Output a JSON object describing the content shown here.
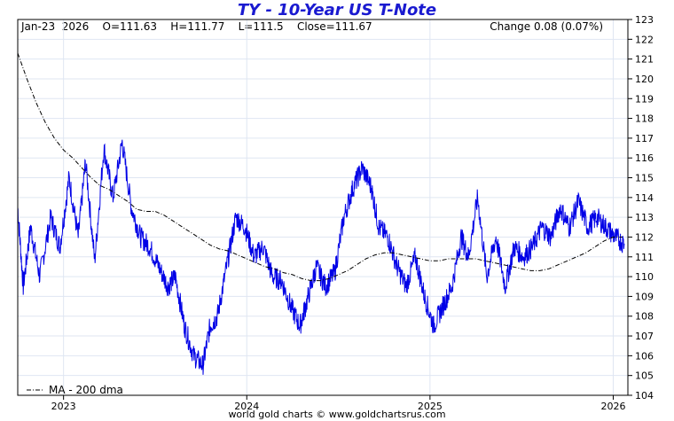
{
  "header": {
    "title": "TY  -  10-Year US T-Note",
    "stats": "Jan-23  2026    O=111.63    H=111.77    L=111.5    Close=111.67",
    "change": "Change 0.08 (0.07%)"
  },
  "footer": {
    "credit": "world gold charts © www.goldchartsrus.com"
  },
  "colors": {
    "price_line": "#0000e6",
    "ma_line": "#000000",
    "grid": "#dfe6f2",
    "frame": "#000000"
  },
  "chart_data": {
    "type": "line",
    "title": "TY  -  10-Year US T-Note",
    "ylim": [
      104,
      123
    ],
    "y_ticks": [
      104,
      105,
      106,
      107,
      108,
      109,
      110,
      111,
      112,
      113,
      114,
      115,
      116,
      117,
      118,
      119,
      120,
      121,
      122,
      123
    ],
    "x_ticks": [
      {
        "label": "2023",
        "x": 2023.0
      },
      {
        "label": "2024",
        "x": 2024.0
      },
      {
        "label": "2025",
        "x": 2025.0
      },
      {
        "label": "2026",
        "x": 2026.0
      }
    ],
    "xlim": [
      2022.75,
      2026.08
    ],
    "grid": true,
    "legend": {
      "position": "bottom-left",
      "entries": [
        "MA - 200 dma"
      ]
    },
    "series": [
      {
        "name": "TY",
        "style": "solid",
        "x": [
          2022.75,
          2022.78,
          2022.82,
          2022.87,
          2022.93,
          2022.98,
          2023.03,
          2023.08,
          2023.12,
          2023.17,
          2023.22,
          2023.27,
          2023.32,
          2023.37,
          2023.42,
          2023.47,
          2023.52,
          2023.57,
          2023.61,
          2023.66,
          2023.71,
          2023.76,
          2023.8,
          2023.84,
          2023.89,
          2023.94,
          2023.99,
          2024.04,
          2024.09,
          2024.14,
          2024.19,
          2024.24,
          2024.29,
          2024.33,
          2024.38,
          2024.43,
          2024.48,
          2024.53,
          2024.58,
          2024.63,
          2024.68,
          2024.72,
          2024.77,
          2024.82,
          2024.87,
          2024.92,
          2024.97,
          2025.02,
          2025.07,
          2025.12,
          2025.17,
          2025.21,
          2025.26,
          2025.31,
          2025.36,
          2025.41,
          2025.46,
          2025.51,
          2025.56,
          2025.61,
          2025.66,
          2025.71,
          2025.76,
          2025.81,
          2025.86,
          2025.91,
          2025.96,
          2026.01,
          2026.06
        ],
        "y": [
          113.5,
          109.5,
          112.5,
          110.0,
          113.0,
          111.5,
          115.0,
          112.0,
          115.8,
          110.8,
          116.5,
          114.0,
          116.8,
          113.5,
          112.0,
          111.5,
          110.5,
          109.5,
          110.0,
          107.5,
          106.0,
          105.5,
          107.5,
          108.0,
          110.5,
          113.0,
          112.5,
          111.0,
          111.5,
          110.0,
          109.8,
          108.5,
          107.5,
          108.8,
          110.5,
          109.5,
          110.2,
          113.0,
          114.5,
          115.5,
          114.5,
          112.5,
          112.0,
          110.5,
          109.5,
          111.0,
          109.0,
          107.5,
          108.5,
          109.5,
          112.0,
          111.0,
          114.0,
          110.0,
          112.0,
          109.5,
          111.5,
          111.0,
          111.5,
          112.5,
          112.0,
          113.5,
          112.5,
          113.8,
          112.5,
          113.0,
          112.5,
          112.0,
          111.67
        ]
      },
      {
        "name": "MA - 200 dma",
        "style": "dashdot",
        "x": [
          2022.75,
          2022.8,
          2022.85,
          2022.9,
          2022.95,
          2023.0,
          2023.05,
          2023.1,
          2023.15,
          2023.2,
          2023.25,
          2023.3,
          2023.35,
          2023.4,
          2023.45,
          2023.5,
          2023.55,
          2023.6,
          2023.65,
          2023.7,
          2023.75,
          2023.8,
          2023.85,
          2023.9,
          2023.95,
          2024.0,
          2024.05,
          2024.1,
          2024.15,
          2024.2,
          2024.25,
          2024.3,
          2024.35,
          2024.4,
          2024.45,
          2024.5,
          2024.55,
          2024.6,
          2024.65,
          2024.7,
          2024.75,
          2024.8,
          2024.85,
          2024.9,
          2024.95,
          2025.0,
          2025.05,
          2025.1,
          2025.15,
          2025.2,
          2025.25,
          2025.3,
          2025.35,
          2025.4,
          2025.45,
          2025.5,
          2025.55,
          2025.6,
          2025.65,
          2025.7,
          2025.75,
          2025.8,
          2025.85,
          2025.9,
          2025.95,
          2026.0,
          2026.05
        ],
        "y": [
          121.3,
          120.0,
          118.8,
          117.8,
          117.0,
          116.4,
          116.0,
          115.5,
          115.0,
          114.6,
          114.4,
          114.1,
          113.8,
          113.4,
          113.3,
          113.3,
          113.1,
          112.8,
          112.5,
          112.2,
          111.9,
          111.6,
          111.4,
          111.3,
          111.1,
          110.9,
          110.7,
          110.5,
          110.4,
          110.2,
          110.1,
          109.9,
          109.8,
          109.8,
          109.9,
          110.1,
          110.3,
          110.6,
          110.9,
          111.1,
          111.2,
          111.2,
          111.1,
          111.0,
          110.9,
          110.8,
          110.8,
          110.9,
          110.9,
          110.9,
          110.9,
          110.8,
          110.7,
          110.6,
          110.5,
          110.4,
          110.3,
          110.3,
          110.4,
          110.6,
          110.8,
          111.0,
          111.2,
          111.5,
          111.8,
          112.0,
          112.0
        ]
      }
    ]
  }
}
